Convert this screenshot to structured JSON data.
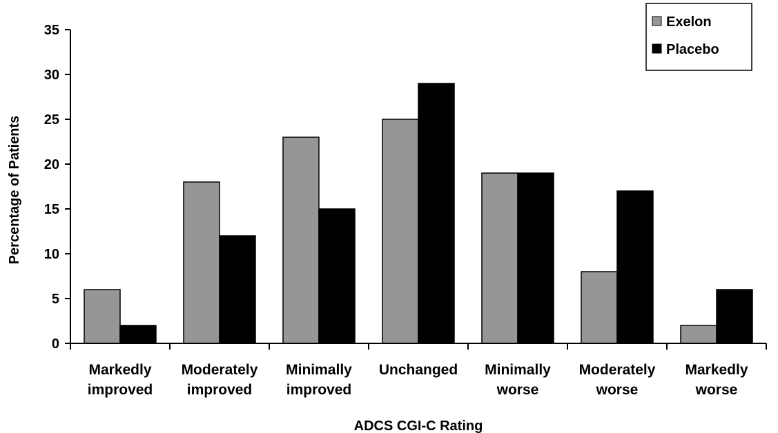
{
  "chart_data": {
    "type": "bar",
    "title": "",
    "xlabel": "ADCS CGI-C Rating",
    "ylabel": "Percentage of Patients",
    "ylim": [
      0,
      35
    ],
    "yticks": [
      0,
      5,
      10,
      15,
      20,
      25,
      30,
      35
    ],
    "grid": false,
    "legend_position": "top-right",
    "categories": [
      [
        "Markedly",
        "improved"
      ],
      [
        "Moderately",
        "improved"
      ],
      [
        "Minimally",
        "improved"
      ],
      [
        "Unchanged"
      ],
      [
        "Minimally",
        "worse"
      ],
      [
        "Moderately",
        "worse"
      ],
      [
        "Markedly",
        "worse"
      ]
    ],
    "series": [
      {
        "name": "Exelon",
        "color": "#969696",
        "values": [
          6,
          18,
          23,
          25,
          19,
          8,
          2
        ]
      },
      {
        "name": "Placebo",
        "color": "#000000",
        "values": [
          2,
          12,
          15,
          29,
          19,
          17,
          6
        ]
      }
    ]
  }
}
